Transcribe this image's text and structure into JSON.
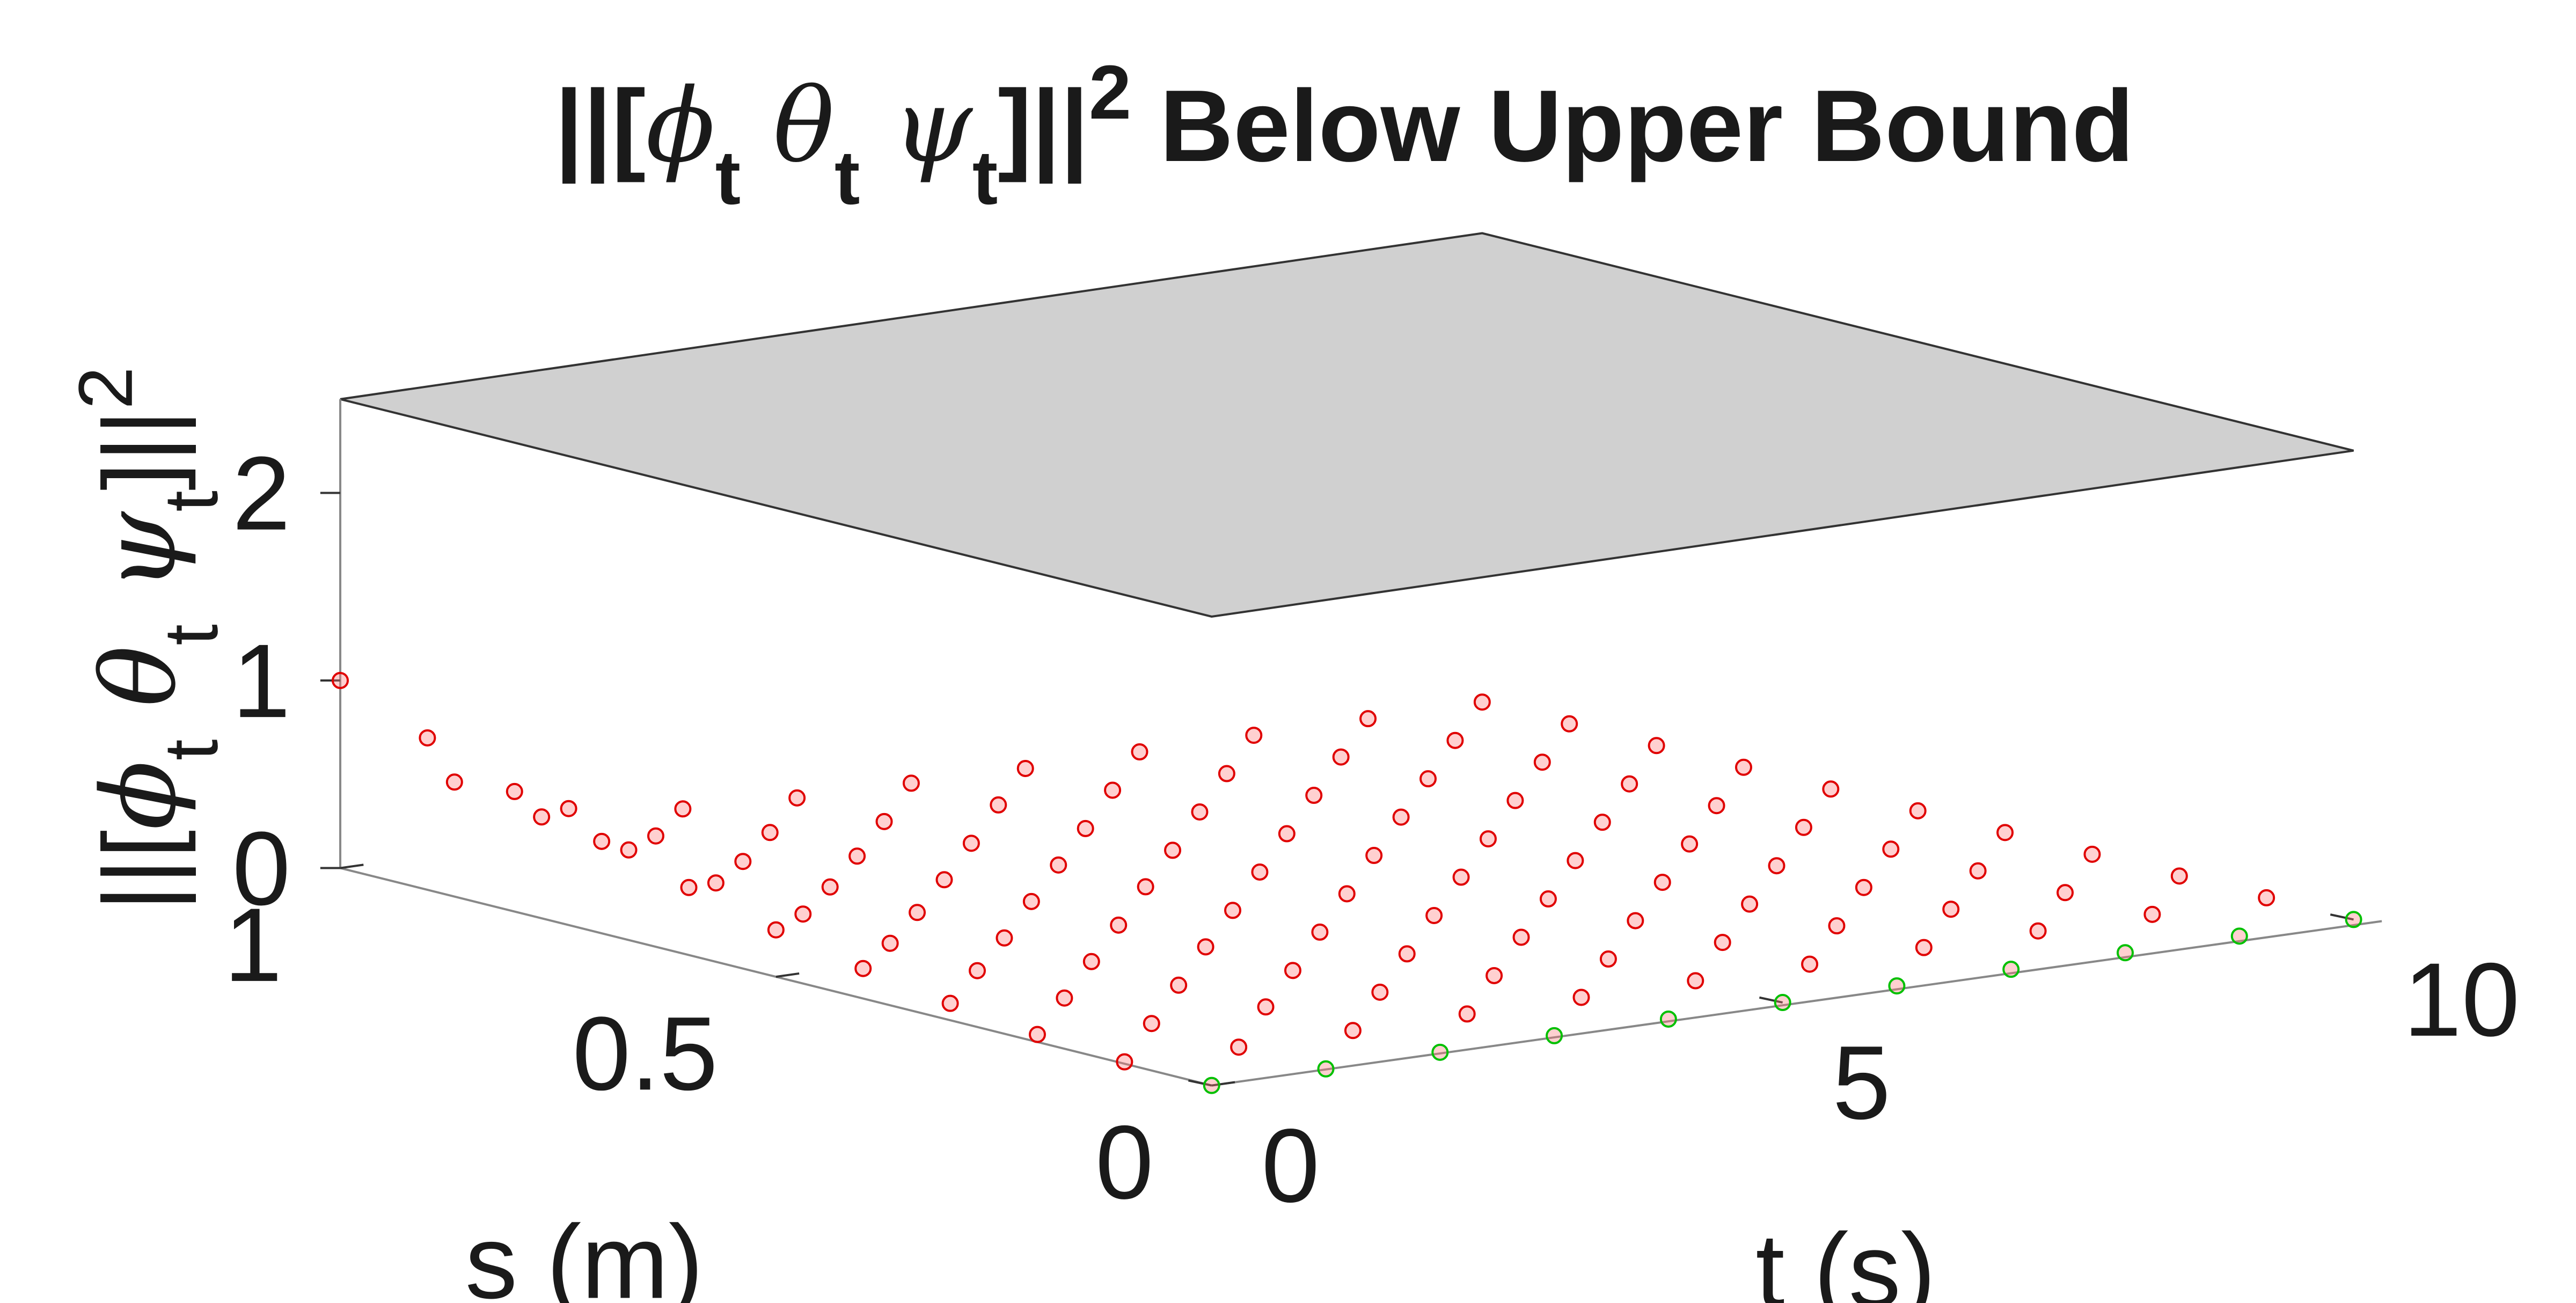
{
  "chart_data": {
    "type": "surface3d",
    "title_parts": [
      {
        "text": "||["
      },
      {
        "text": "ϕ",
        "style": "italic"
      },
      {
        "text": "t",
        "style": "sub"
      },
      {
        "text": " θ",
        "style": "italic"
      },
      {
        "text": "t",
        "style": "sub"
      },
      {
        "text": " ψ",
        "style": "italic"
      },
      {
        "text": "t",
        "style": "sub"
      },
      {
        "text": "]||"
      },
      {
        "text": "2",
        "style": "sup"
      },
      {
        "text": " Below Upper Bound"
      }
    ],
    "zlabel_parts": [
      {
        "text": "||["
      },
      {
        "text": "ϕ",
        "style": "italic"
      },
      {
        "text": "t",
        "style": "sub"
      },
      {
        "text": " θ",
        "style": "italic"
      },
      {
        "text": "t",
        "style": "sub"
      },
      {
        "text": " ψ",
        "style": "italic"
      },
      {
        "text": "t",
        "style": "sub"
      },
      {
        "text": "]||"
      },
      {
        "text": "2",
        "style": "sup"
      }
    ],
    "slabel": "s (m)",
    "tlabel": "t (s)",
    "s": [
      0,
      0.1,
      0.2,
      0.3,
      0.4,
      0.5,
      0.6,
      0.7,
      0.8,
      0.9,
      1
    ],
    "t": [
      0,
      1,
      2,
      3,
      4,
      5,
      6,
      7,
      8,
      9,
      10
    ],
    "z": [
      [
        0,
        0,
        0,
        0,
        0,
        0,
        0,
        0,
        0,
        0,
        0
      ],
      [
        0.01,
        0,
        0,
        0,
        0,
        0,
        0,
        0,
        0,
        0,
        0
      ],
      [
        0.04,
        0.01,
        0.01,
        0,
        0,
        0,
        0,
        0,
        0,
        0,
        0
      ],
      [
        0.09,
        0.03,
        0.01,
        0,
        0,
        0,
        0,
        0,
        0,
        0,
        0
      ],
      [
        0.16,
        0.06,
        0.02,
        0.01,
        0,
        0,
        0,
        0,
        0,
        0,
        0
      ],
      [
        0.25,
        0.09,
        0.03,
        0.01,
        0,
        0,
        0,
        0,
        0,
        0,
        0
      ],
      [
        0.36,
        0.13,
        0.05,
        0.02,
        0.01,
        0,
        0,
        0,
        0,
        0,
        0
      ],
      [
        0.49,
        0.18,
        0.07,
        0.02,
        0.01,
        0,
        0,
        0,
        0,
        0,
        0
      ],
      [
        0.64,
        0.24,
        0.09,
        0.03,
        0.01,
        0,
        0,
        0,
        0,
        0,
        0
      ],
      [
        0.81,
        0.3,
        0.11,
        0.04,
        0.01,
        0.01,
        0,
        0,
        0,
        0,
        0
      ],
      [
        1,
        0.37,
        0.14,
        0.05,
        0.02,
        0.01,
        0,
        0,
        0,
        0,
        0
      ]
    ],
    "marker_color": "#e00000",
    "boundary_color": "#00c000",
    "bound": 2.5,
    "bound_color": "#d0d0d0",
    "slim": [
      0,
      1
    ],
    "sticks": [
      0,
      0.5,
      1
    ],
    "tlim": [
      0,
      10
    ],
    "tticks": [
      0,
      5,
      10
    ],
    "zlim": [
      0,
      2.5
    ],
    "zticks": [
      0,
      1,
      2
    ]
  }
}
